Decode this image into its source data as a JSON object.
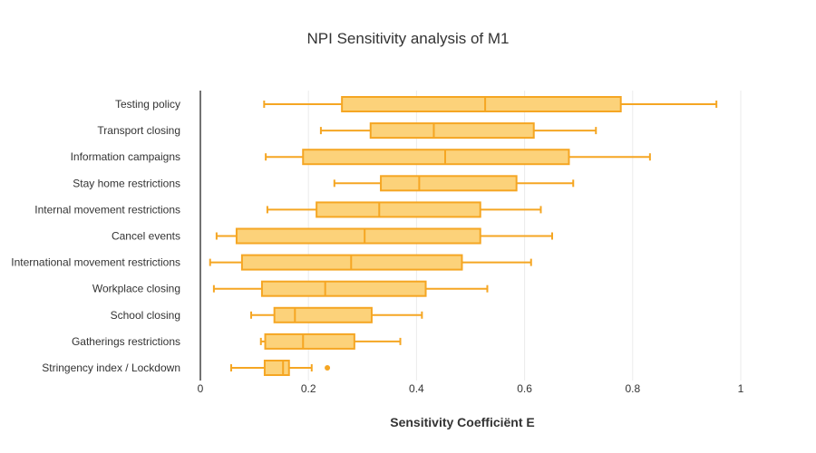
{
  "chart_data": {
    "type": "box",
    "orientation": "horizontal",
    "title": "NPI Sensitivity analysis of M1",
    "xlabel": "Sensitivity Coefficiënt E",
    "ylabel": "",
    "xlim": [
      0,
      1.05
    ],
    "xticks": [
      0,
      0.2,
      0.4,
      0.6,
      0.8,
      1
    ],
    "xtick_labels": [
      "0",
      "0.2",
      "0.4",
      "0.6",
      "0.8",
      "1"
    ],
    "grid": "vertical",
    "color": "#f5a623",
    "fill": "#fcd27a",
    "boxes": [
      {
        "category": "Testing policy",
        "min": 0.118,
        "q1": 0.262,
        "median": 0.527,
        "q3": 0.778,
        "max": 0.955,
        "outliers": []
      },
      {
        "category": "Transport closing",
        "min": 0.223,
        "q1": 0.315,
        "median": 0.432,
        "q3": 0.617,
        "max": 0.732,
        "outliers": []
      },
      {
        "category": "Information campaigns",
        "min": 0.121,
        "q1": 0.19,
        "median": 0.453,
        "q3": 0.682,
        "max": 0.832,
        "outliers": []
      },
      {
        "category": "Stay home restrictions",
        "min": 0.248,
        "q1": 0.334,
        "median": 0.405,
        "q3": 0.585,
        "max": 0.69,
        "outliers": []
      },
      {
        "category": "Internal movement restrictions",
        "min": 0.124,
        "q1": 0.215,
        "median": 0.331,
        "q3": 0.518,
        "max": 0.63,
        "outliers": []
      },
      {
        "category": "Cancel events",
        "min": 0.03,
        "q1": 0.067,
        "median": 0.304,
        "q3": 0.518,
        "max": 0.651,
        "outliers": []
      },
      {
        "category": "International movement restrictions",
        "min": 0.018,
        "q1": 0.077,
        "median": 0.279,
        "q3": 0.484,
        "max": 0.612,
        "outliers": []
      },
      {
        "category": "Workplace closing",
        "min": 0.025,
        "q1": 0.114,
        "median": 0.231,
        "q3": 0.417,
        "max": 0.531,
        "outliers": []
      },
      {
        "category": "School closing",
        "min": 0.094,
        "q1": 0.137,
        "median": 0.175,
        "q3": 0.317,
        "max": 0.41,
        "outliers": []
      },
      {
        "category": "Gatherings restrictions",
        "min": 0.112,
        "q1": 0.12,
        "median": 0.19,
        "q3": 0.285,
        "max": 0.37,
        "outliers": []
      },
      {
        "category": "Stringency index / Lockdown",
        "min": 0.057,
        "q1": 0.119,
        "median": 0.153,
        "q3": 0.164,
        "max": 0.206,
        "outliers": [
          0.235
        ]
      }
    ]
  }
}
